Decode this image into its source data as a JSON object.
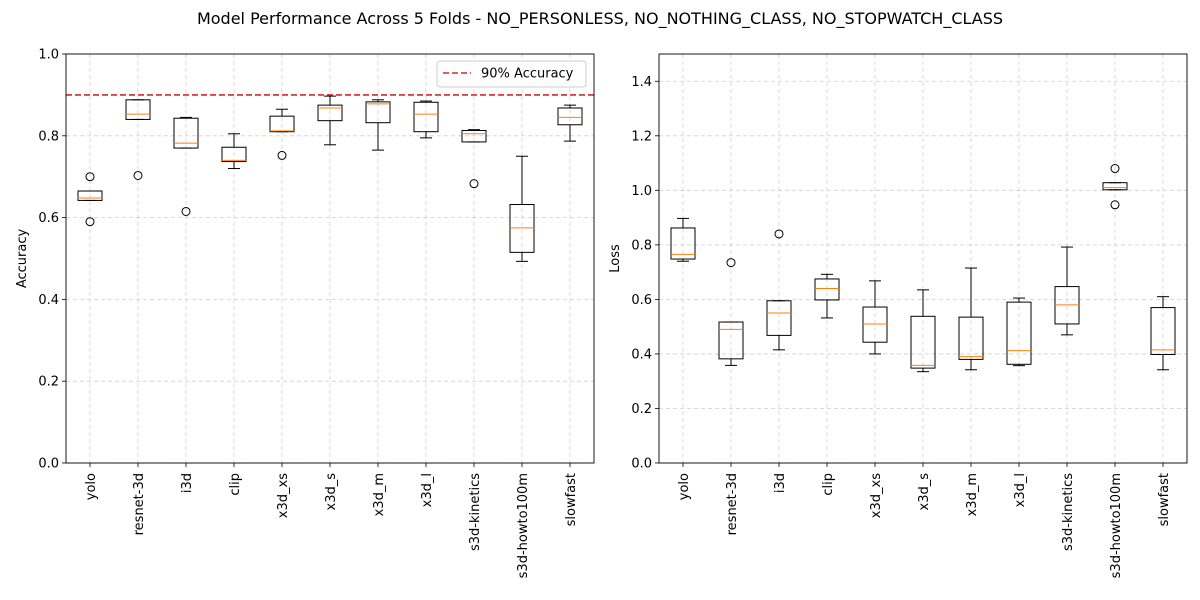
{
  "figure": {
    "title": "Model Performance Across 5 Folds - NO_PERSONLESS, NO_NOTHING_CLASS, NO_STOPWATCH_CLASS"
  },
  "chart_data": [
    {
      "type": "box",
      "ylabel": "Accuracy",
      "ylim": [
        0,
        1.0
      ],
      "yticks": [
        "0.0",
        "0.2",
        "0.4",
        "0.6",
        "0.8",
        "1.0"
      ],
      "grid": true,
      "legend_position": "top-right",
      "reference_line": {
        "label": "90% Accuracy",
        "value": 0.9,
        "color": "#d62728",
        "style": "dashed"
      },
      "box_color": "#000000",
      "median_color": "#ff7f0e",
      "categories": [
        "yolo",
        "resnet-3d",
        "i3d",
        "clip",
        "x3d_xs",
        "x3d_s",
        "x3d_m",
        "x3d_l",
        "s3d-kinetics",
        "s3d-howto100m",
        "slowfast"
      ],
      "boxes": [
        {
          "whislo": 0.642,
          "q1": 0.642,
          "med": 0.648,
          "q3": 0.665,
          "whishi": 0.665,
          "fliers": [
            0.7,
            0.59
          ]
        },
        {
          "whislo": 0.84,
          "q1": 0.84,
          "med": 0.853,
          "q3": 0.888,
          "whishi": 0.888,
          "fliers": [
            0.703
          ]
        },
        {
          "whislo": 0.77,
          "q1": 0.77,
          "med": 0.782,
          "q3": 0.843,
          "whishi": 0.845,
          "fliers": [
            0.615
          ]
        },
        {
          "whislo": 0.72,
          "q1": 0.737,
          "med": 0.74,
          "q3": 0.772,
          "whishi": 0.805,
          "fliers": []
        },
        {
          "whislo": 0.81,
          "q1": 0.81,
          "med": 0.812,
          "q3": 0.848,
          "whishi": 0.865,
          "fliers": [
            0.752
          ]
        },
        {
          "whislo": 0.778,
          "q1": 0.837,
          "med": 0.868,
          "q3": 0.875,
          "whishi": 0.897,
          "fliers": []
        },
        {
          "whislo": 0.765,
          "q1": 0.832,
          "med": 0.878,
          "q3": 0.883,
          "whishi": 0.888,
          "fliers": []
        },
        {
          "whislo": 0.795,
          "q1": 0.81,
          "med": 0.853,
          "q3": 0.882,
          "whishi": 0.885,
          "fliers": []
        },
        {
          "whislo": 0.785,
          "q1": 0.785,
          "med": 0.805,
          "q3": 0.813,
          "whishi": 0.815,
          "fliers": [
            0.683
          ]
        },
        {
          "whislo": 0.493,
          "q1": 0.515,
          "med": 0.575,
          "q3": 0.632,
          "whishi": 0.75,
          "fliers": []
        },
        {
          "whislo": 0.787,
          "q1": 0.827,
          "med": 0.845,
          "q3": 0.868,
          "whishi": 0.875,
          "fliers": []
        }
      ]
    },
    {
      "type": "box",
      "ylabel": "Loss",
      "ylim": [
        0,
        1.5
      ],
      "yticks": [
        "0.0",
        "0.2",
        "0.4",
        "0.6",
        "0.8",
        "1.0",
        "1.2",
        "1.4"
      ],
      "grid": true,
      "box_color": "#000000",
      "median_color": "#ff7f0e",
      "categories": [
        "yolo",
        "resnet-3d",
        "i3d",
        "clip",
        "x3d_xs",
        "x3d_s",
        "x3d_m",
        "x3d_l",
        "s3d-kinetics",
        "s3d-howto100m",
        "slowfast"
      ],
      "boxes": [
        {
          "whislo": 0.74,
          "q1": 0.748,
          "med": 0.765,
          "q3": 0.862,
          "whishi": 0.897,
          "fliers": []
        },
        {
          "whislo": 0.358,
          "q1": 0.382,
          "med": 0.49,
          "q3": 0.517,
          "whishi": 0.517,
          "fliers": [
            0.735
          ]
        },
        {
          "whislo": 0.415,
          "q1": 0.468,
          "med": 0.55,
          "q3": 0.595,
          "whishi": 0.595,
          "fliers": [
            0.84
          ]
        },
        {
          "whislo": 0.532,
          "q1": 0.598,
          "med": 0.64,
          "q3": 0.675,
          "whishi": 0.692,
          "fliers": []
        },
        {
          "whislo": 0.4,
          "q1": 0.443,
          "med": 0.51,
          "q3": 0.572,
          "whishi": 0.668,
          "fliers": []
        },
        {
          "whislo": 0.335,
          "q1": 0.348,
          "med": 0.358,
          "q3": 0.538,
          "whishi": 0.635,
          "fliers": []
        },
        {
          "whislo": 0.342,
          "q1": 0.38,
          "med": 0.39,
          "q3": 0.535,
          "whishi": 0.715,
          "fliers": []
        },
        {
          "whislo": 0.357,
          "q1": 0.362,
          "med": 0.412,
          "q3": 0.59,
          "whishi": 0.605,
          "fliers": []
        },
        {
          "whislo": 0.47,
          "q1": 0.51,
          "med": 0.58,
          "q3": 0.647,
          "whishi": 0.792,
          "fliers": []
        },
        {
          "whislo": 1.002,
          "q1": 1.002,
          "med": 1.01,
          "q3": 1.028,
          "whishi": 1.028,
          "fliers": [
            1.08,
            0.947
          ]
        },
        {
          "whislo": 0.342,
          "q1": 0.398,
          "med": 0.415,
          "q3": 0.57,
          "whishi": 0.61,
          "fliers": []
        }
      ]
    }
  ]
}
